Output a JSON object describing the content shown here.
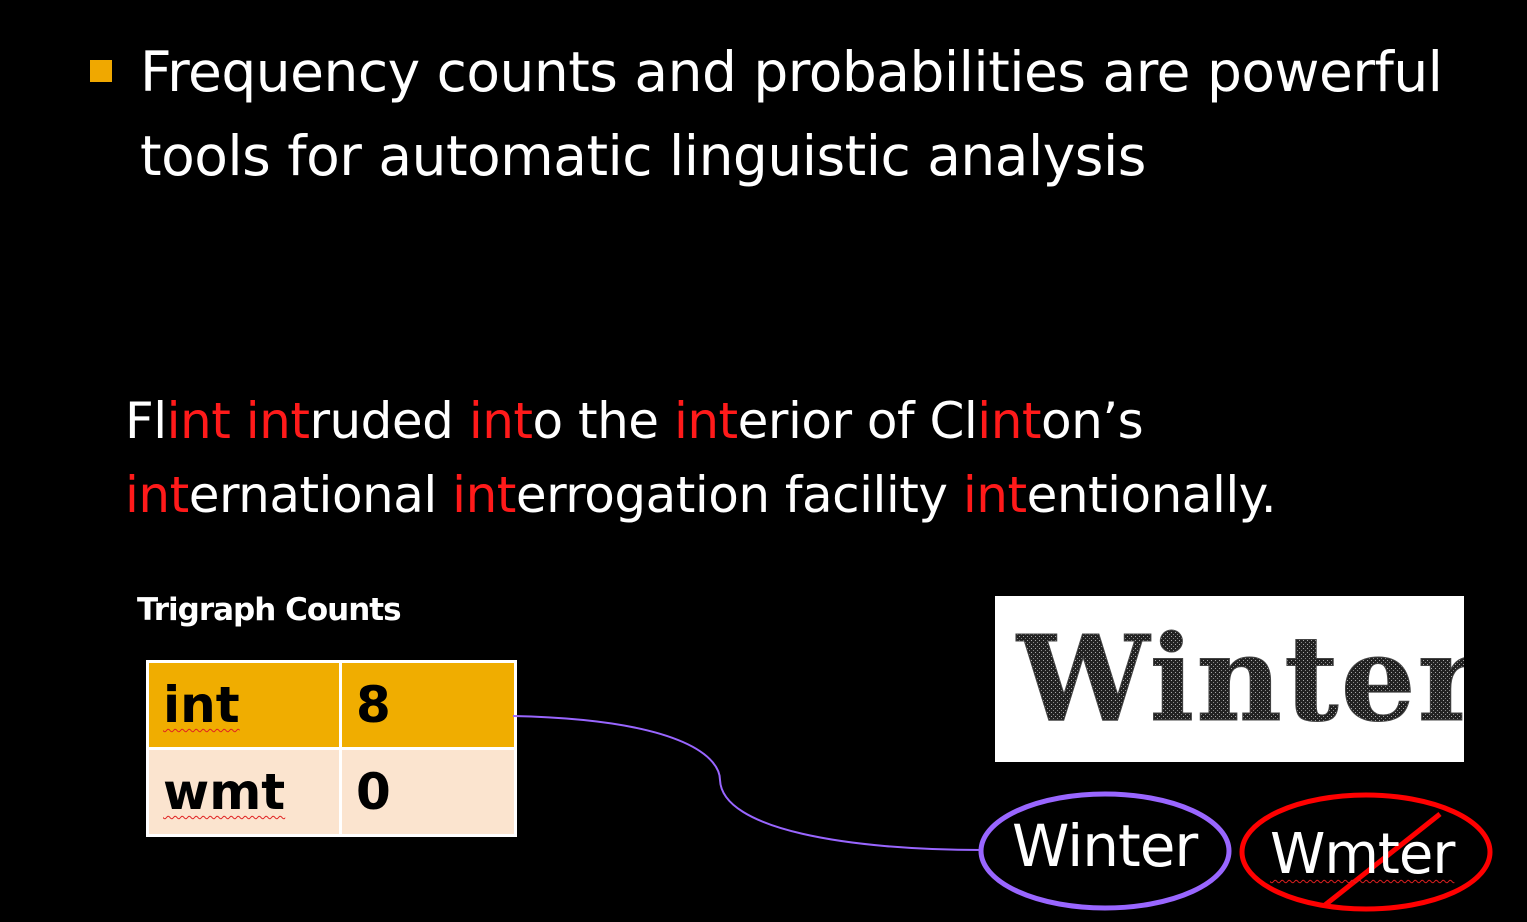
{
  "bullet": {
    "line1": "Frequency counts and probabilities are powerful",
    "line2": "tools for automatic linguistic analysis",
    "marker_color": "#f0a800"
  },
  "sentence": {
    "parts": [
      {
        "t": "Fl",
        "hl": false
      },
      {
        "t": "int",
        "hl": true
      },
      {
        "t": " ",
        "hl": false
      },
      {
        "t": "int",
        "hl": true
      },
      {
        "t": "ruded ",
        "hl": false
      },
      {
        "t": "int",
        "hl": true
      },
      {
        "t": "o the ",
        "hl": false
      },
      {
        "t": "int",
        "hl": true
      },
      {
        "t": "erior of Cl",
        "hl": false
      },
      {
        "t": "int",
        "hl": true
      },
      {
        "t": "on’s",
        "hl": false
      },
      {
        "br": true
      },
      {
        "t": "int",
        "hl": true
      },
      {
        "t": "ernational ",
        "hl": false
      },
      {
        "t": "int",
        "hl": true
      },
      {
        "t": "errogation facility ",
        "hl": false
      },
      {
        "t": "int",
        "hl": true
      },
      {
        "t": "entionally.",
        "hl": false
      }
    ],
    "highlight_color": "#ff1a1a"
  },
  "trigraph": {
    "title": "Trigraph Counts",
    "rows": [
      {
        "trigraph": "int",
        "count": "8"
      },
      {
        "trigraph": "wmt",
        "count": "0"
      }
    ]
  },
  "captcha": {
    "text": "Winter"
  },
  "candidates": {
    "accepted": "Winter",
    "rejected": "Wmter",
    "accepted_color": "#9966ff",
    "rejected_color": "#ff0000"
  },
  "connector_color": "#9966ff"
}
